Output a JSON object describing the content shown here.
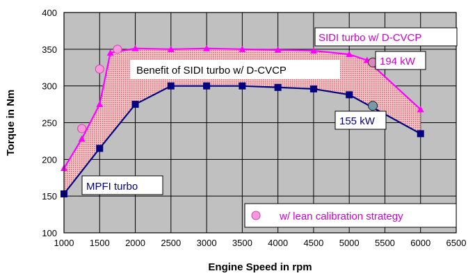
{
  "chart_data": {
    "type": "line",
    "title": "",
    "xlabel": "Engine Speed in rpm",
    "ylabel": "Torque in Nm",
    "xlim": [
      1000,
      6500
    ],
    "ylim": [
      100,
      400
    ],
    "x_ticks": [
      1000,
      1500,
      2000,
      2500,
      3000,
      3500,
      4000,
      4500,
      5000,
      5500,
      6000,
      6500
    ],
    "y_ticks": [
      100,
      150,
      200,
      250,
      300,
      350,
      400
    ],
    "grid": true,
    "series": [
      {
        "name": "SIDI turbo w/ D-CVCP",
        "color": "#ff00ff",
        "marker": "triangle",
        "x": [
          1000,
          1250,
          1500,
          1650,
          2000,
          2500,
          3000,
          3500,
          4000,
          4500,
          5000,
          5250,
          6000
        ],
        "y": [
          188,
          228,
          275,
          345,
          351,
          350,
          351,
          350,
          349,
          348,
          343,
          335,
          268
        ]
      },
      {
        "name": "MPFI turbo",
        "color": "#000080",
        "marker": "square",
        "x": [
          1000,
          1500,
          2000,
          2500,
          3000,
          3500,
          4000,
          4500,
          5000,
          6000
        ],
        "y": [
          153,
          215,
          275,
          300,
          300,
          300,
          298,
          296,
          288,
          235
        ]
      },
      {
        "name": "w/ lean calibration strategy",
        "color": "#ff99dd",
        "marker": "circle",
        "x": [
          1250,
          1500,
          1750
        ],
        "y": [
          242,
          323,
          350
        ]
      }
    ],
    "annotations": {
      "benefit": "Benefit of SIDI turbo w/ D-CVCP",
      "sidi_label": "SIDI turbo w/ D-CVCP",
      "mpfi_label": "MPFI turbo",
      "sidi_power": "194 kW",
      "mpfi_power": "155 kW",
      "sidi_power_point": {
        "x": 5330,
        "y": 332
      },
      "mpfi_power_point": {
        "x": 5330,
        "y": 273
      }
    },
    "legend": {
      "label": "w/ lean calibration strategy",
      "placement": "bottom-right"
    }
  },
  "colors": {
    "plot_bg": "#c0c0c0",
    "benefit_fill": "#e89090",
    "sidi_line": "#ff00ff",
    "mpfi_line": "#000080",
    "lean_marker": "#ff99dd",
    "power_marker_sidi": "#dd88bb",
    "power_marker_mpfi": "#7799aa"
  }
}
